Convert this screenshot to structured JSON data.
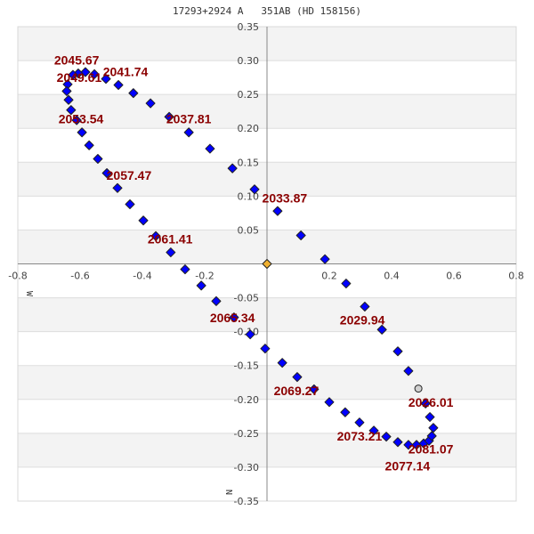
{
  "chart_data": {
    "type": "scatter",
    "title": "17293+2924 A   351AB (HD 158156)",
    "xlabel": "W",
    "ylabel": "N",
    "xlim": [
      -0.8,
      0.8
    ],
    "ylim": [
      -0.35,
      0.35
    ],
    "xticks": [
      "-0.8",
      "-0.6",
      "-0.4",
      "-0.2",
      "0.2",
      "0.4",
      "0.6",
      "0.8"
    ],
    "xtick_values": [
      -0.8,
      -0.6,
      -0.4,
      -0.2,
      0.2,
      0.4,
      0.6,
      0.8
    ],
    "yticks": [
      "0.35",
      "0.30",
      "0.25",
      "0.20",
      "0.15",
      "0.10",
      "0.05",
      "-0.05",
      "-0.10",
      "-0.15",
      "-0.20",
      "-0.25",
      "-0.30",
      "-0.35"
    ],
    "ytick_values": [
      0.35,
      0.3,
      0.25,
      0.2,
      0.15,
      0.1,
      0.05,
      -0.05,
      -0.1,
      -0.15,
      -0.2,
      -0.25,
      -0.3,
      -0.35
    ],
    "grid": true,
    "colors": {
      "orbit": "#0000ff",
      "primary": "#f0b030",
      "observation": "#d0d0d0",
      "label": "#8b0000",
      "band": "#f3f3f3"
    },
    "primary": [
      0,
      0
    ],
    "observation": [
      0.486,
      -0.184
    ],
    "orbit_points": [
      [
        0.509,
        -0.206
      ],
      [
        0.454,
        -0.158
      ],
      [
        0.42,
        -0.129
      ],
      [
        0.369,
        -0.097
      ],
      [
        0.314,
        -0.063
      ],
      [
        0.254,
        -0.029
      ],
      [
        0.186,
        0.007
      ],
      [
        0.109,
        0.042
      ],
      [
        0.034,
        0.078
      ],
      [
        -0.04,
        0.11
      ],
      [
        -0.111,
        0.141
      ],
      [
        -0.183,
        0.17
      ],
      [
        -0.251,
        0.194
      ],
      [
        -0.314,
        0.217
      ],
      [
        -0.374,
        0.237
      ],
      [
        -0.429,
        0.252
      ],
      [
        -0.477,
        0.264
      ],
      [
        -0.517,
        0.273
      ],
      [
        -0.554,
        0.28
      ],
      [
        -0.583,
        0.283
      ],
      [
        -0.606,
        0.281
      ],
      [
        -0.623,
        0.279
      ],
      [
        -0.64,
        0.265
      ],
      [
        -0.643,
        0.255
      ],
      [
        -0.637,
        0.242
      ],
      [
        -0.629,
        0.227
      ],
      [
        -0.611,
        0.212
      ],
      [
        -0.594,
        0.194
      ],
      [
        -0.571,
        0.175
      ],
      [
        -0.543,
        0.155
      ],
      [
        -0.514,
        0.134
      ],
      [
        -0.48,
        0.112
      ],
      [
        -0.44,
        0.088
      ],
      [
        -0.397,
        0.064
      ],
      [
        -0.357,
        0.041
      ],
      [
        -0.309,
        0.017
      ],
      [
        -0.263,
        -0.008
      ],
      [
        -0.211,
        -0.032
      ],
      [
        -0.163,
        -0.055
      ],
      [
        -0.106,
        -0.079
      ],
      [
        -0.054,
        -0.104
      ],
      [
        -0.006,
        -0.125
      ],
      [
        0.049,
        -0.146
      ],
      [
        0.097,
        -0.167
      ],
      [
        0.151,
        -0.185
      ],
      [
        0.2,
        -0.204
      ],
      [
        0.251,
        -0.219
      ],
      [
        0.297,
        -0.234
      ],
      [
        0.343,
        -0.246
      ],
      [
        0.383,
        -0.255
      ],
      [
        0.42,
        -0.263
      ],
      [
        0.454,
        -0.267
      ],
      [
        0.48,
        -0.267
      ],
      [
        0.503,
        -0.265
      ],
      [
        0.52,
        -0.261
      ],
      [
        0.529,
        -0.254
      ],
      [
        0.534,
        -0.242
      ],
      [
        0.523,
        -0.226
      ]
    ],
    "annotations": [
      {
        "text": "2045.67",
        "at": [
          -0.611,
          0.301
        ]
      },
      {
        "text": "2049.61",
        "at": [
          -0.603,
          0.275
        ]
      },
      {
        "text": "2041.74",
        "at": [
          -0.48,
          0.284
        ]
      },
      {
        "text": "2053.54",
        "at": [
          -0.597,
          0.214
        ]
      },
      {
        "text": "2037.81",
        "at": [
          -0.251,
          0.214
        ]
      },
      {
        "text": "2057.47",
        "at": [
          -0.443,
          0.131
        ]
      },
      {
        "text": "2033.87",
        "at": [
          0.031,
          0.097
        ]
      },
      {
        "text": "2061.41",
        "at": [
          -0.311,
          0.037
        ]
      },
      {
        "text": "2065.34",
        "at": [
          -0.111,
          -0.099
        ]
      },
      {
        "text": "2029.94",
        "at": [
          0.306,
          -0.083
        ]
      },
      {
        "text": "2069.27",
        "at": [
          0.094,
          -0.187
        ]
      },
      {
        "text": "2026.01",
        "at": [
          0.526,
          -0.204
        ]
      },
      {
        "text": "2073.21",
        "at": [
          0.297,
          -0.254
        ]
      },
      {
        "text": "2081.07",
        "at": [
          0.526,
          -0.273
        ]
      },
      {
        "text": "2077.14",
        "at": [
          0.451,
          -0.286
        ]
      }
    ]
  }
}
